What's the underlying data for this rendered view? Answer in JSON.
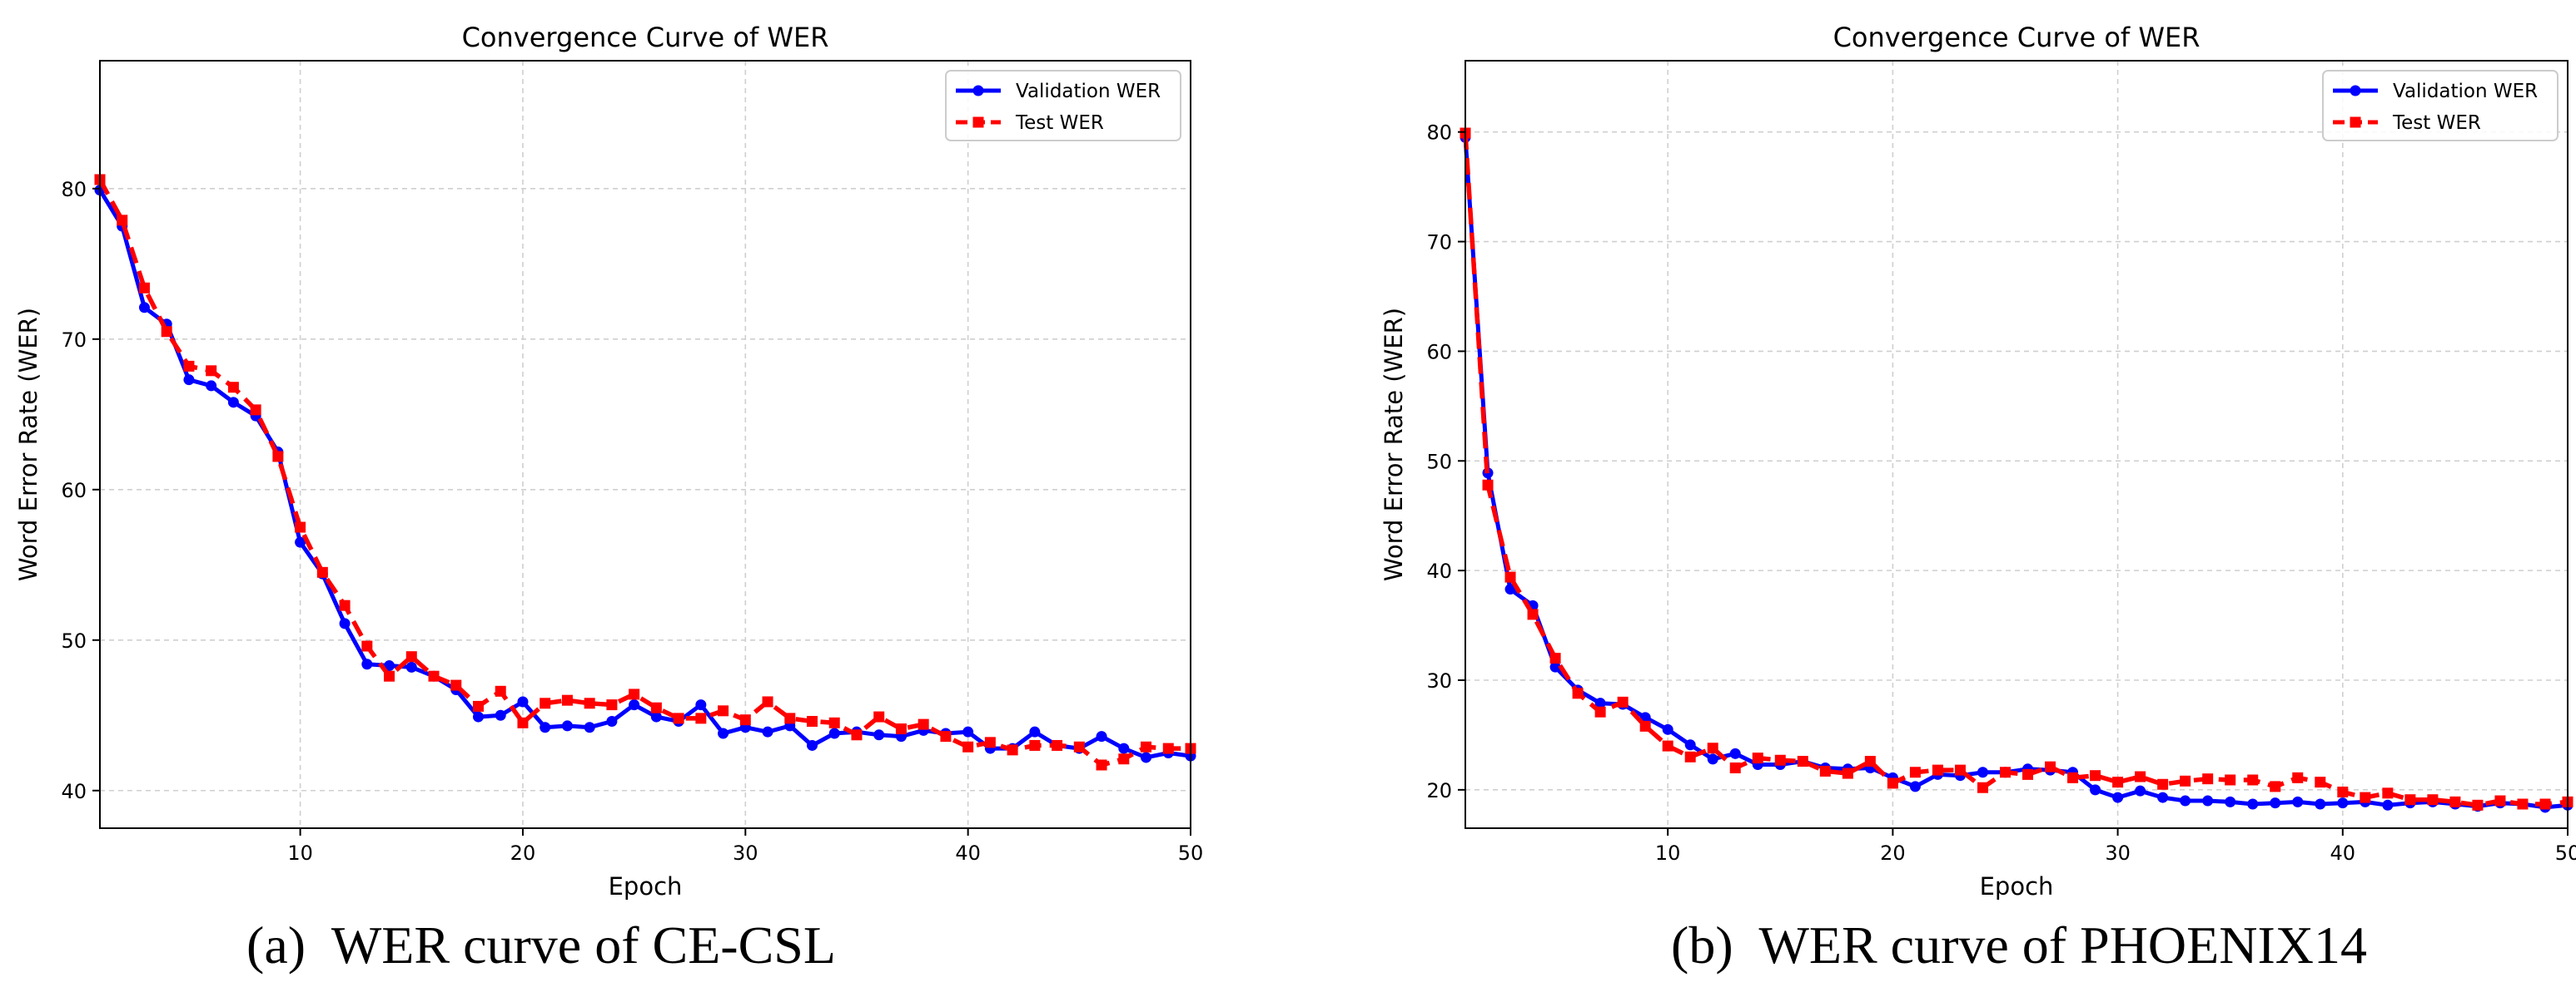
{
  "colors": {
    "validation": "#0000ff",
    "test": "#ff0000",
    "grid": "#cfcfcf",
    "axis": "#000000",
    "legend_border": "#cccccc"
  },
  "captions": {
    "a": "(a)  WER curve of CE-CSL",
    "b": "(b)  WER curve of PHOENIX14"
  },
  "chart_data": [
    {
      "type": "line",
      "title": "Convergence Curve of WER",
      "xlabel": "Epoch",
      "ylabel": "Word Error Rate (WER)",
      "xlim": [
        1,
        50
      ],
      "ylim": [
        37.5,
        88.5
      ],
      "xticks": [
        10,
        20,
        30,
        40,
        50
      ],
      "yticks": [
        40,
        50,
        60,
        70,
        80
      ],
      "grid": true,
      "legend_position": "top-right",
      "x": [
        1,
        2,
        3,
        4,
        5,
        6,
        7,
        8,
        9,
        10,
        11,
        12,
        13,
        14,
        15,
        16,
        17,
        18,
        19,
        20,
        21,
        22,
        23,
        24,
        25,
        26,
        27,
        28,
        29,
        30,
        31,
        32,
        33,
        34,
        35,
        36,
        37,
        38,
        39,
        40,
        41,
        42,
        43,
        44,
        45,
        46,
        47,
        48,
        49,
        50
      ],
      "series": [
        {
          "name": "Validation WER",
          "style": "solid-circle",
          "values": [
            79.9,
            77.5,
            72.1,
            71.0,
            67.3,
            66.9,
            65.8,
            64.9,
            62.5,
            56.5,
            54.4,
            51.1,
            48.4,
            48.3,
            48.2,
            47.6,
            46.7,
            44.9,
            45.0,
            45.9,
            44.2,
            44.3,
            44.2,
            44.6,
            45.7,
            44.9,
            44.6,
            45.7,
            43.8,
            44.2,
            43.9,
            44.3,
            43.0,
            43.8,
            43.9,
            43.7,
            43.6,
            44.0,
            43.8,
            43.9,
            42.8,
            42.8,
            43.9,
            43.0,
            42.8,
            43.6,
            42.8,
            42.2,
            42.5,
            42.3
          ]
        },
        {
          "name": "Test WER",
          "style": "dashed-square",
          "values": [
            80.6,
            77.9,
            73.4,
            70.5,
            68.2,
            67.9,
            66.8,
            65.3,
            62.2,
            57.5,
            54.5,
            52.3,
            49.6,
            47.6,
            48.9,
            47.6,
            47.0,
            45.6,
            46.6,
            44.5,
            45.8,
            46.0,
            45.8,
            45.7,
            46.4,
            45.5,
            44.8,
            44.8,
            45.3,
            44.7,
            45.9,
            44.8,
            44.6,
            44.5,
            43.7,
            44.9,
            44.1,
            44.4,
            43.6,
            42.9,
            43.2,
            42.7,
            43.0,
            43.0,
            42.9,
            41.7,
            42.1,
            42.9,
            42.8,
            42.8
          ]
        }
      ]
    },
    {
      "type": "line",
      "title": "Convergence Curve of WER",
      "xlabel": "Epoch",
      "ylabel": "Word Error Rate (WER)",
      "xlim": [
        1,
        50
      ],
      "ylim": [
        16.5,
        86.5
      ],
      "xticks": [
        10,
        20,
        30,
        40,
        50
      ],
      "yticks": [
        20,
        30,
        40,
        50,
        60,
        70,
        80
      ],
      "grid": true,
      "legend_position": "top-right",
      "x": [
        1,
        2,
        3,
        4,
        5,
        6,
        7,
        8,
        9,
        10,
        11,
        12,
        13,
        14,
        15,
        16,
        17,
        18,
        19,
        20,
        21,
        22,
        23,
        24,
        25,
        26,
        27,
        28,
        29,
        30,
        31,
        32,
        33,
        34,
        35,
        36,
        37,
        38,
        39,
        40,
        41,
        42,
        43,
        44,
        45,
        46,
        47,
        48,
        49,
        50
      ],
      "series": [
        {
          "name": "Validation WER",
          "style": "solid-circle",
          "values": [
            79.5,
            48.9,
            38.3,
            36.8,
            31.2,
            29.1,
            27.9,
            27.8,
            26.6,
            25.5,
            24.1,
            22.8,
            23.3,
            22.3,
            22.3,
            22.6,
            22.0,
            21.9,
            22.0,
            21.1,
            20.3,
            21.4,
            21.3,
            21.6,
            21.6,
            21.9,
            21.8,
            21.6,
            20.0,
            19.3,
            19.9,
            19.3,
            19.0,
            19.0,
            18.9,
            18.7,
            18.8,
            18.9,
            18.7,
            18.8,
            18.9,
            18.6,
            18.8,
            18.9,
            18.7,
            18.5,
            18.8,
            18.7,
            18.4,
            18.6
          ]
        },
        {
          "name": "Test WER",
          "style": "dashed-square",
          "values": [
            79.9,
            47.8,
            39.4,
            36.0,
            32.0,
            28.8,
            27.1,
            28.0,
            25.8,
            24.0,
            23.0,
            23.8,
            22.0,
            22.9,
            22.7,
            22.6,
            21.7,
            21.5,
            22.6,
            20.6,
            21.6,
            21.8,
            21.8,
            20.2,
            21.6,
            21.4,
            22.1,
            21.1,
            21.3,
            20.7,
            21.2,
            20.5,
            20.8,
            21.0,
            20.9,
            20.9,
            20.3,
            21.1,
            20.7,
            19.8,
            19.3,
            19.7,
            19.1,
            19.1,
            18.9,
            18.6,
            19.0,
            18.7,
            18.7,
            18.9
          ]
        }
      ]
    }
  ]
}
